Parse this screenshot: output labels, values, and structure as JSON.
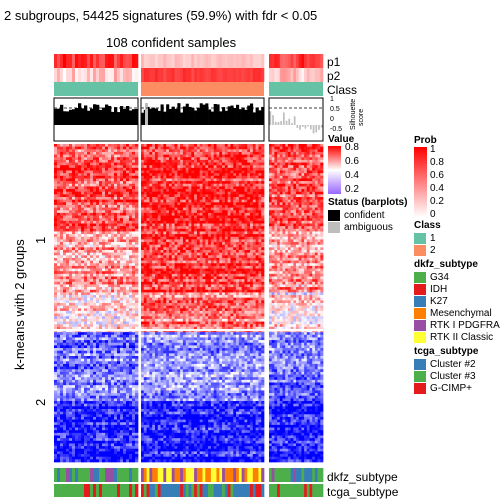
{
  "title": "2 subgroups, 54425 signatures (59.9%) with fdr < 0.05",
  "subtitle": "108 confident samples",
  "row_title": "k-means with 2 groups",
  "row_groups": [
    "1",
    "2"
  ],
  "annotations": {
    "top": [
      "p1",
      "p2",
      "Class"
    ],
    "silhouette_label": "Silhouette\nscore",
    "silhouette_ticks": [
      "1",
      "0.5",
      "0",
      "-0.5"
    ],
    "bottom": [
      "dkfz_subtype",
      "tcga_subtype"
    ]
  },
  "legends": {
    "value": {
      "title": "Value",
      "ticks": [
        "0.8",
        "0.6",
        "0.4",
        "0.2"
      ],
      "colors": [
        "#ff0000",
        "#ffffff",
        "#0000ff"
      ]
    },
    "status": {
      "title": "Status (barplots)",
      "items": [
        {
          "label": "confident",
          "color": "#000000"
        },
        {
          "label": "ambiguous",
          "color": "#bebebe"
        }
      ]
    },
    "prob": {
      "title": "Prob",
      "ticks": [
        "1",
        "0.8",
        "0.6",
        "0.4",
        "0.2",
        "0"
      ],
      "colors": [
        "#ff0000",
        "#ffffff"
      ]
    },
    "class": {
      "title": "Class",
      "items": [
        {
          "label": "1",
          "color": "#66c2a5"
        },
        {
          "label": "2",
          "color": "#fc8d62"
        }
      ]
    },
    "dkfz_subtype": {
      "title": "dkfz_subtype",
      "items": [
        {
          "label": "G34",
          "color": "#4daf4a"
        },
        {
          "label": "IDH",
          "color": "#e41a1c"
        },
        {
          "label": "K27",
          "color": "#377eb8"
        },
        {
          "label": "Mesenchymal",
          "color": "#ff7f00"
        },
        {
          "label": "RTK I PDGFRA",
          "color": "#984ea3"
        },
        {
          "label": "RTK II Classic",
          "color": "#ffff33"
        }
      ]
    },
    "tcga_subtype": {
      "title": "tcga_subtype",
      "items": [
        {
          "label": "Cluster #2",
          "color": "#377eb8"
        },
        {
          "label": "Cluster #3",
          "color": "#4daf4a"
        },
        {
          "label": "G-CIMP+",
          "color": "#e41a1c"
        }
      ]
    }
  },
  "chart_data": {
    "type": "heatmap",
    "title": "2 subgroups, 54425 signatures (59.9%) with fdr < 0.05",
    "subtitle": "108 confident samples",
    "row_title": "k-means with 2 groups",
    "row_groups": [
      "1",
      "2"
    ],
    "column_groups": [
      "1",
      "2",
      "1"
    ],
    "value_range": [
      0.2,
      0.8
    ],
    "prob_range": [
      0,
      1
    ],
    "silhouette_range": [
      -0.5,
      1
    ],
    "silhouette_threshold": 0.5
  }
}
